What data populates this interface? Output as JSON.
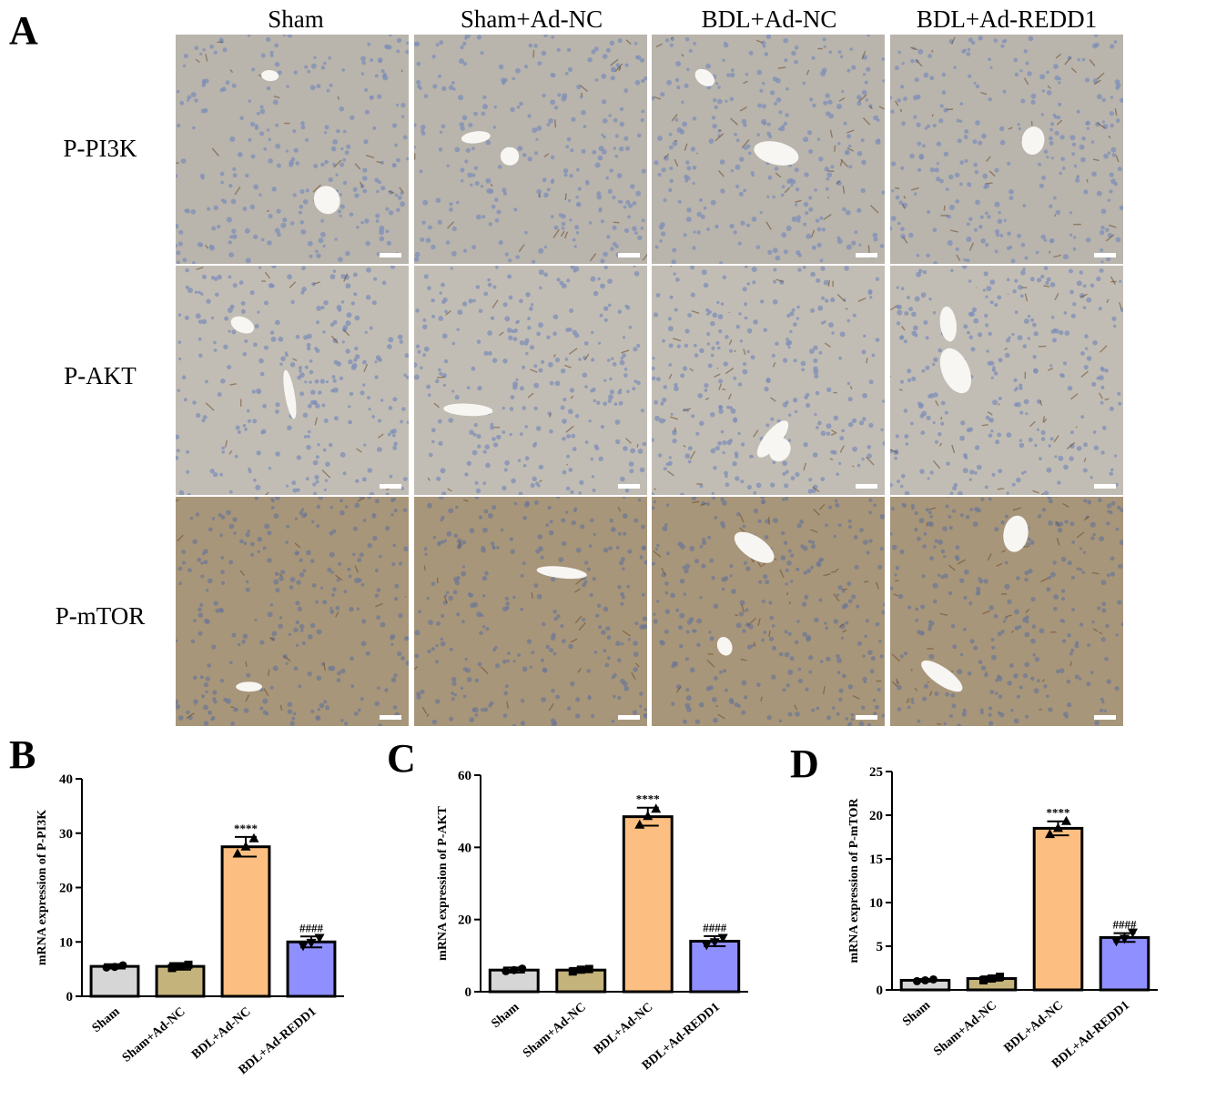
{
  "panels": {
    "A": "A",
    "B": "B",
    "C": "C",
    "D": "D"
  },
  "columns": [
    "Sham",
    "Sham+Ad-NC",
    "BDL+Ad-NC",
    "BDL+Ad-REDD1"
  ],
  "rows": [
    "P-PI3K",
    "P-AKT",
    "P-mTOR"
  ],
  "colors": {
    "Sham": "#d6d6d6",
    "Sham+Ad-NC": "#c4b47c",
    "BDL+Ad-NC": "#fdbf81",
    "BDL+Ad-REDD1": "#8f8fff",
    "tile_base_pi3k": "#b9b4ac",
    "tile_base_akt": "#c2bdb4",
    "tile_base_mtor": "#a8967a"
  },
  "chart_data": [
    {
      "type": "bar",
      "panel": "B",
      "categories": [
        "Sham",
        "Sham+Ad-NC",
        "BDL+Ad-NC",
        "BDL+Ad-REDD1"
      ],
      "values": [
        5.5,
        5.5,
        27.5,
        10
      ],
      "errors": [
        0.4,
        0.6,
        1.8,
        1.0
      ],
      "points": [
        [
          5.3,
          5.4,
          5.7
        ],
        [
          5.2,
          5.5,
          5.8
        ],
        [
          26.2,
          27.5,
          29.0
        ],
        [
          9.3,
          9.9,
          10.8
        ]
      ],
      "significance": [
        "",
        "",
        "****",
        "####"
      ],
      "ylabel": "mRNA expression of P-PI3K",
      "ylim": [
        0,
        40
      ],
      "yticks": [
        0,
        10,
        20,
        30,
        40
      ]
    },
    {
      "type": "bar",
      "panel": "C",
      "categories": [
        "Sham",
        "Sham+Ad-NC",
        "BDL+Ad-NC",
        "BDL+Ad-REDD1"
      ],
      "values": [
        6,
        6,
        48.5,
        14
      ],
      "errors": [
        0.7,
        0.6,
        2.5,
        1.4
      ],
      "points": [
        [
          5.7,
          6.0,
          6.4
        ],
        [
          5.6,
          6.1,
          6.3
        ],
        [
          46.2,
          48.6,
          50.6
        ],
        [
          13.0,
          13.8,
          15.0
        ]
      ],
      "significance": [
        "",
        "",
        "****",
        "####"
      ],
      "ylabel": "mRNA expression of P-AKT",
      "ylim": [
        0,
        60
      ],
      "yticks": [
        0,
        20,
        40,
        60
      ]
    },
    {
      "type": "bar",
      "panel": "D",
      "categories": [
        "Sham",
        "Sham+Ad-NC",
        "BDL+Ad-NC",
        "BDL+Ad-REDD1"
      ],
      "values": [
        1.1,
        1.3,
        18.5,
        6
      ],
      "errors": [
        0.15,
        0.25,
        0.8,
        0.5
      ],
      "points": [
        [
          1.0,
          1.1,
          1.2
        ],
        [
          1.1,
          1.3,
          1.5
        ],
        [
          17.8,
          18.5,
          19.3
        ],
        [
          5.6,
          5.9,
          6.6
        ]
      ],
      "significance": [
        "",
        "",
        "****",
        "####"
      ],
      "ylabel": "mRNA expression of P-mTOR",
      "ylim": [
        0,
        25
      ],
      "yticks": [
        0,
        5,
        10,
        15,
        20,
        25
      ]
    }
  ]
}
